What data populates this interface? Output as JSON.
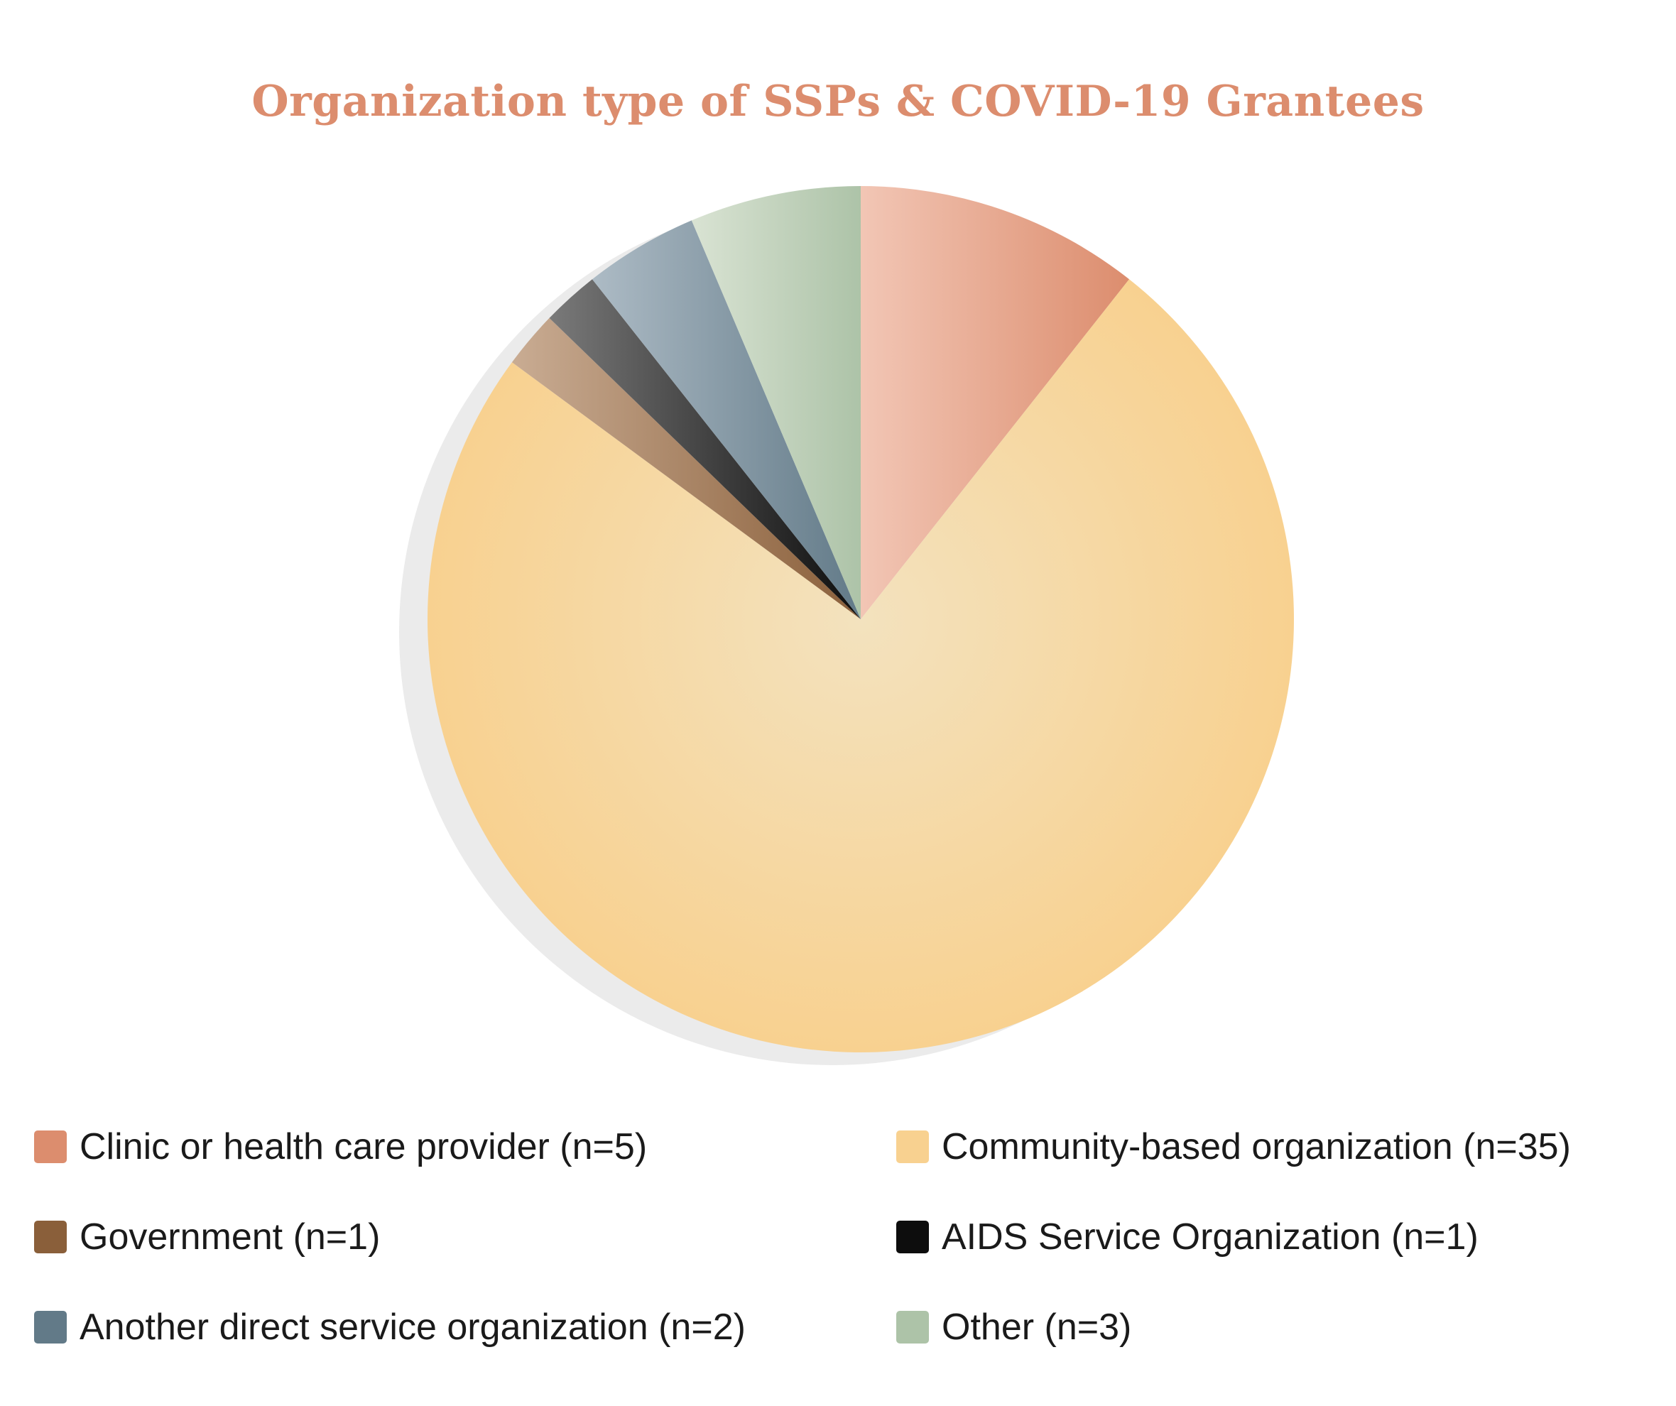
{
  "chart_data": {
    "type": "pie",
    "title": "Organization type of SSPs & COVID-19 Grantees",
    "legend_position": "bottom",
    "slices": [
      {
        "label": "Clinic or health care provider (n=5)",
        "value": 5,
        "color": "#dc8d6e",
        "color_light": "#f2c6b5"
      },
      {
        "label": "Community-based organization (n=35)",
        "value": 35,
        "color": "#f8d190",
        "color_light": "#f3e2be"
      },
      {
        "label": "Government (n=1)",
        "value": 1,
        "color": "#8a5f3a",
        "color_light": "#c9ac93"
      },
      {
        "label": "AIDS Service Organization (n=1)",
        "value": 1,
        "color": "#0d0d0d",
        "color_light": "#7a7a7a"
      },
      {
        "label": "Another direct service organization (n=2)",
        "value": 2,
        "color": "#627a88",
        "color_light": "#adbbc5"
      },
      {
        "label": "Other (n=3)",
        "value": 3,
        "color": "#adc3a8",
        "color_light": "#d9e3d3"
      }
    ]
  }
}
